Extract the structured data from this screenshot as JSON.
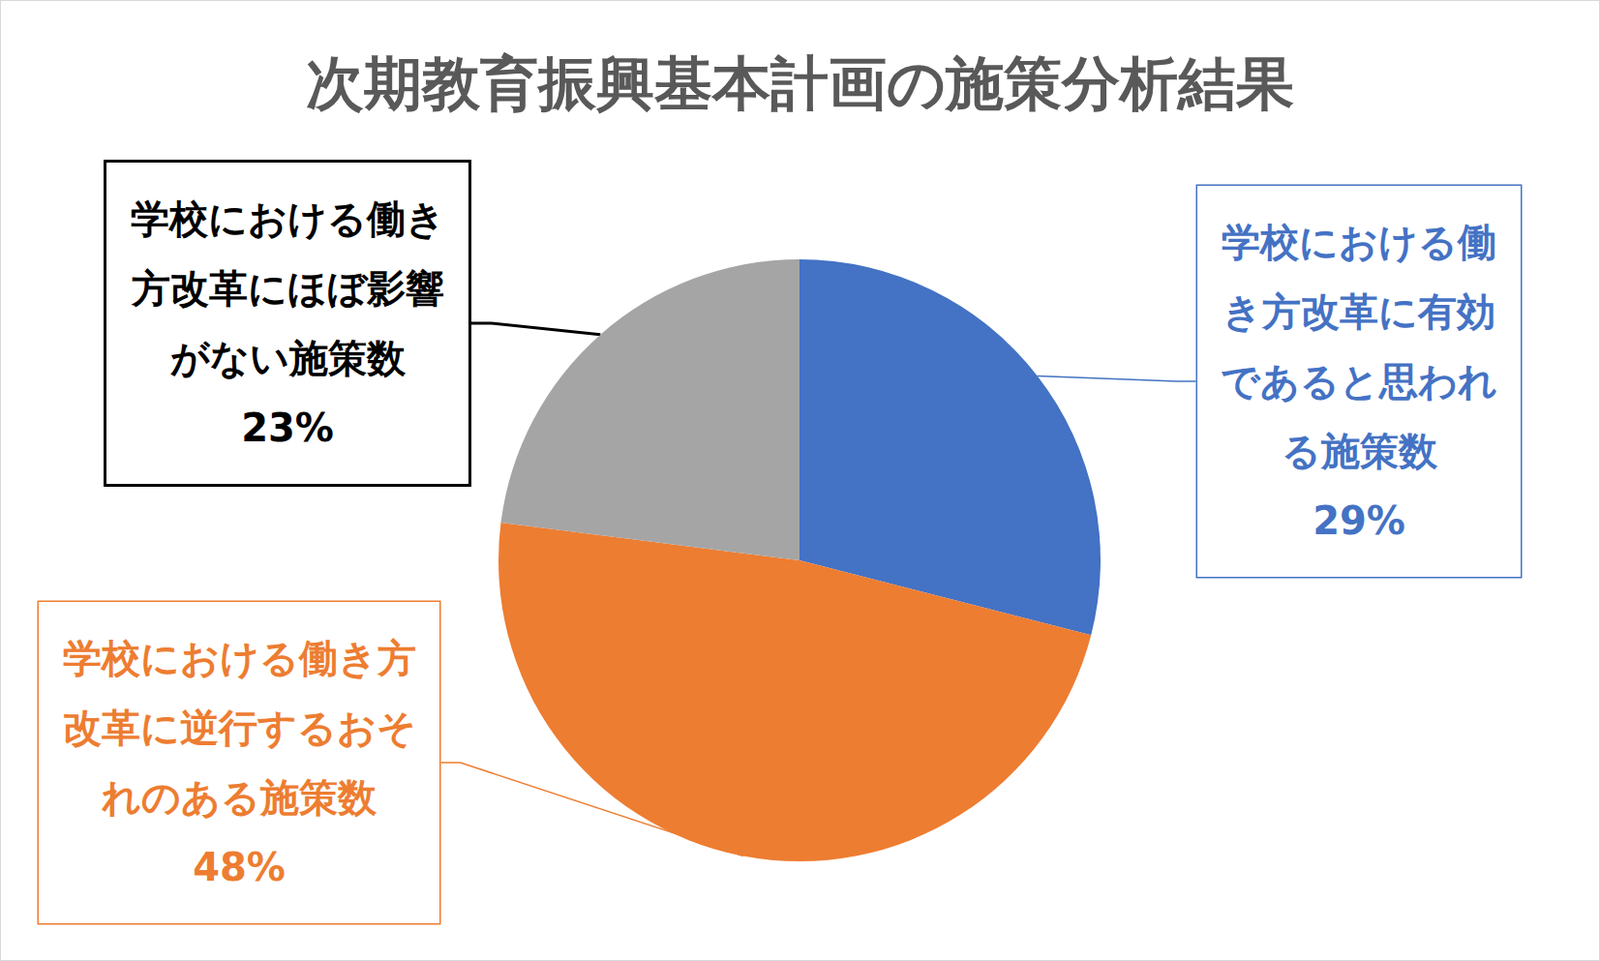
{
  "chart_data": {
    "type": "pie",
    "title": "次期教育振興基本計画の施策分析結果",
    "categories": [
      "学校における働き方改革に有効であると思われる施策数",
      "学校における働き方改革に逆行するおそれのある施策数",
      "学校における働き方改革にほぼ影響がない施策数"
    ],
    "values": [
      29,
      48,
      23
    ],
    "value_labels": [
      "29%",
      "48%",
      "23%"
    ],
    "colors": [
      "#4472c4",
      "#ed7d31",
      "#a5a5a5"
    ],
    "data_labels": true
  }
}
